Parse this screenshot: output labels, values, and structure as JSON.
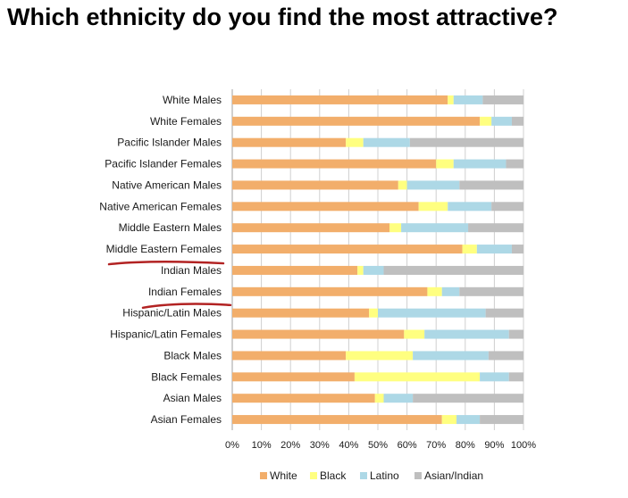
{
  "slide": {
    "title": "Which ethnicity do you find the most attractive?"
  },
  "colors": {
    "White": "#F2AE6B",
    "Black": "#FFFF80",
    "Latino": "#ADD8E6",
    "Asian/Indian": "#BFBFBF",
    "annotation": "#B22222",
    "grid": "#D0D0D0",
    "axis": "#A0A0A0",
    "text": "#1a1a1a"
  },
  "chart_data": {
    "type": "bar",
    "orientation": "horizontal",
    "stacked": true,
    "percent_stacked": true,
    "title": "Which ethnicity do you find the most attractive?",
    "xlabel": "",
    "ylabel": "",
    "xlim": [
      0,
      100
    ],
    "x_ticks": [
      "0%",
      "10%",
      "20%",
      "30%",
      "40%",
      "50%",
      "60%",
      "70%",
      "80%",
      "90%",
      "100%"
    ],
    "grid": true,
    "legend": "bottom",
    "categories": [
      "White Males",
      "White Females",
      "Pacific Islander Males",
      "Pacific Islander Females",
      "Native American Males",
      "Native American Females",
      "Middle Eastern Males",
      "Middle Eastern Females",
      "Indian Males",
      "Indian Females",
      "Hispanic/Latin Males",
      "Hispanic/Latin Females",
      "Black Males",
      "Black Females",
      "Asian Males",
      "Asian Females"
    ],
    "series": [
      {
        "name": "White",
        "values": [
          74,
          85,
          39,
          70,
          57,
          64,
          54,
          79,
          43,
          67,
          47,
          59,
          39,
          42,
          49,
          72
        ]
      },
      {
        "name": "Black",
        "values": [
          2,
          4,
          6,
          6,
          3,
          10,
          4,
          5,
          2,
          5,
          3,
          7,
          23,
          43,
          3,
          5
        ]
      },
      {
        "name": "Latino",
        "values": [
          10,
          7,
          16,
          18,
          18,
          15,
          23,
          12,
          7,
          6,
          37,
          29,
          26,
          10,
          10,
          8
        ]
      },
      {
        "name": "Asian/Indian",
        "values": [
          14,
          4,
          39,
          6,
          22,
          11,
          19,
          4,
          48,
          22,
          13,
          5,
          12,
          5,
          38,
          15
        ]
      }
    ],
    "annotations": [
      {
        "type": "underline",
        "target": "Middle Eastern Females",
        "color": "red"
      },
      {
        "type": "underline",
        "target": "Indian Females",
        "color": "red"
      }
    ]
  }
}
